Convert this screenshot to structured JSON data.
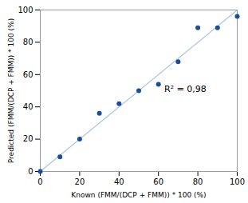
{
  "chart_data": {
    "type": "scatter",
    "x": [
      0,
      10,
      20,
      30,
      40,
      50,
      60,
      70,
      80,
      90,
      100
    ],
    "values": [
      0,
      9,
      20,
      36,
      42,
      50,
      54,
      68,
      89,
      89,
      96
    ],
    "color": "#1a4d9e",
    "fit_line": {
      "x": [
        0,
        100
      ],
      "y": [
        0,
        100
      ],
      "color": "#a8c4e0"
    },
    "annotations": [
      {
        "text": "R² = 0,98",
        "x": 63,
        "y": 51
      }
    ],
    "xlabel": "Known (FMM/(DCP + FMM)) * 100 (%)",
    "ylabel": "Predicted (FMM/(DCP + FMM)) * 100 (%)",
    "xlim": [
      0,
      100
    ],
    "ylim": [
      0,
      100
    ],
    "xticks": [
      0,
      20,
      40,
      60,
      80,
      100
    ],
    "yticks": [
      0,
      20,
      40,
      60,
      80,
      100
    ],
    "grid": false
  }
}
